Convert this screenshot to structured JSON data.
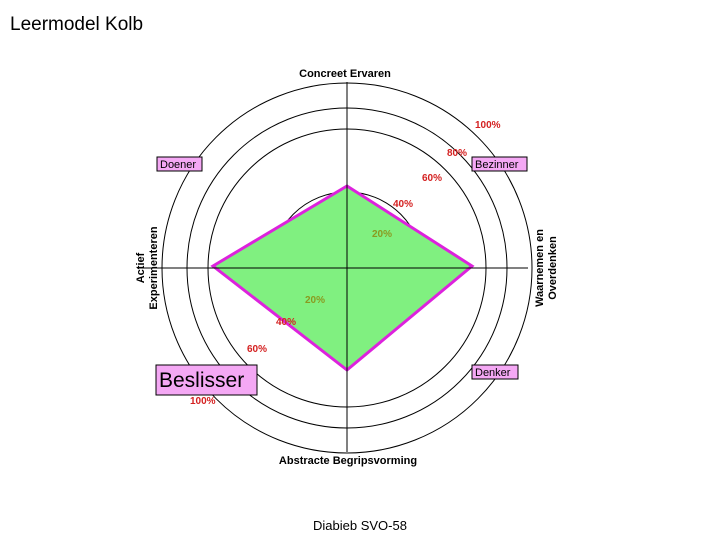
{
  "title": "Leermodel Kolb",
  "footer": "Diabieb SVO-58",
  "axes": {
    "top": "Concreet Ervaren",
    "bottom": "Abstracte Begripsvorming",
    "left_line1": "Actief",
    "left_line2": "Experimenteren",
    "right_line1": "Waarnemen en",
    "right_line2": "Overdenken"
  },
  "quadrants": {
    "doener": "Doener",
    "bezinner": "Bezinner",
    "beslisser": "Beslisser",
    "denker": "Denker"
  },
  "percent_labels": {
    "upper_right": [
      "20%",
      "40%",
      "60%",
      "80%",
      "100%"
    ],
    "lower_left": [
      "20%",
      "40%",
      "60%",
      "100%"
    ]
  },
  "colors": {
    "fill": "#80f080",
    "outline": "#dd22dd",
    "label_box": "#f4a8f4",
    "pct_red": "#d42020",
    "pct_green": "#8a9a20"
  },
  "profile": {
    "concreet_ervaren": 40,
    "waarnemen_overdenken": 60,
    "abstracte_begripsvorming": 50,
    "actief_experimenteren": 65
  }
}
